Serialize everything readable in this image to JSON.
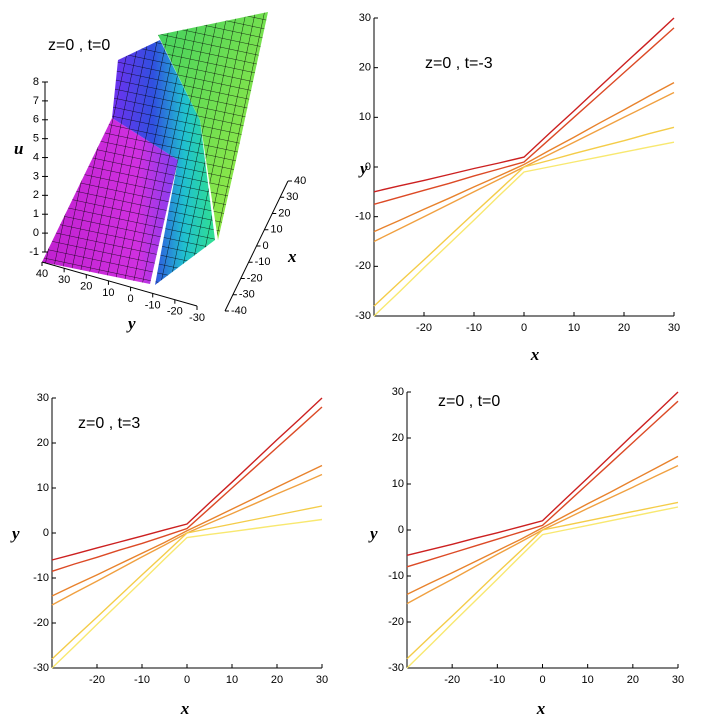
{
  "chart_data": [
    {
      "type": "surface",
      "title": "z=0 , t=0",
      "xlabel": "x",
      "ylabel": "y",
      "zlabel": "u",
      "xticks": [
        -40,
        -30,
        -20,
        -10,
        0,
        10,
        20,
        30,
        40
      ],
      "yticks": [
        -30,
        -20,
        -10,
        0,
        10,
        20,
        30,
        40
      ],
      "zticks": [
        -1,
        0,
        1,
        2,
        3,
        4,
        5,
        6,
        7,
        8
      ]
    },
    {
      "type": "line",
      "title": "z=0 , t=-3",
      "xlabel": "x",
      "ylabel": "y",
      "x": [
        -30,
        -25,
        -20,
        -15,
        -10,
        -5,
        0,
        5,
        10,
        15,
        20,
        25,
        30
      ],
      "xlim": [
        -30,
        30
      ],
      "ylim": [
        -30,
        30
      ],
      "xticks": [
        -20,
        -10,
        0,
        10,
        20,
        30
      ],
      "yticks": [
        -30,
        -20,
        -10,
        0,
        10,
        20,
        30
      ],
      "series": [
        {
          "color": "#cc2020",
          "values": [
            -5,
            -3.8,
            -2.7,
            -1.5,
            -0.3,
            0.8,
            2,
            6.7,
            11.3,
            16,
            20.7,
            25.3,
            30
          ]
        },
        {
          "color": "#dc4a26",
          "values": [
            -7.5,
            -6.1,
            -4.7,
            -3.3,
            -1.8,
            -0.4,
            1,
            5.5,
            10,
            14.5,
            19,
            23.5,
            28
          ]
        },
        {
          "color": "#e8822c",
          "values": [
            -13,
            -10.8,
            -8.5,
            -6.3,
            -4,
            -1.8,
            0.5,
            3.3,
            6,
            8.8,
            11.5,
            14.3,
            17
          ]
        },
        {
          "color": "#f0a040",
          "values": [
            -15,
            -12.5,
            -10,
            -7.5,
            -5,
            -2.5,
            0,
            2.5,
            5,
            7.5,
            10,
            12.5,
            15
          ]
        },
        {
          "color": "#f4cc48",
          "values": [
            -28,
            -23.3,
            -18.7,
            -14,
            -9.3,
            -4.7,
            0,
            1.3,
            2.7,
            4,
            5.3,
            6.7,
            8
          ]
        },
        {
          "color": "#f8e870",
          "values": [
            -30,
            -25.2,
            -20.3,
            -15.5,
            -10.7,
            -5.8,
            -1,
            0,
            1,
            2,
            3,
            4,
            5
          ]
        }
      ]
    },
    {
      "type": "line",
      "title": "z=0 , t=3",
      "xlabel": "x",
      "ylabel": "y",
      "x": [
        -30,
        -25,
        -20,
        -15,
        -10,
        -5,
        0,
        5,
        10,
        15,
        20,
        25,
        30
      ],
      "xlim": [
        -30,
        30
      ],
      "ylim": [
        -30,
        30
      ],
      "xticks": [
        -20,
        -10,
        0,
        10,
        20,
        30
      ],
      "yticks": [
        -30,
        -20,
        -10,
        0,
        10,
        20,
        30
      ],
      "series": [
        {
          "color": "#cc2020",
          "values": [
            -6,
            -4.7,
            -3.3,
            -2,
            -0.7,
            0.7,
            2,
            6.7,
            11.3,
            16,
            20.7,
            25.3,
            30
          ]
        },
        {
          "color": "#dc4a26",
          "values": [
            -8.5,
            -6.9,
            -5.4,
            -3.8,
            -2.3,
            -0.7,
            1,
            5.5,
            10,
            14.5,
            19,
            23.5,
            28
          ]
        },
        {
          "color": "#e8822c",
          "values": [
            -14,
            -11.6,
            -9.3,
            -6.9,
            -4.5,
            -2.1,
            0.5,
            2.9,
            5.3,
            7.7,
            10.2,
            12.6,
            15
          ]
        },
        {
          "color": "#f0a040",
          "values": [
            -16,
            -13.3,
            -10.7,
            -8,
            -5.3,
            -2.7,
            0,
            2.2,
            4.3,
            6.5,
            8.7,
            10.8,
            13
          ]
        },
        {
          "color": "#f4cc48",
          "values": [
            -28,
            -23.3,
            -18.7,
            -14,
            -9.3,
            -4.7,
            0,
            1,
            2,
            3,
            4,
            5,
            6
          ]
        },
        {
          "color": "#f8e870",
          "values": [
            -30,
            -25.2,
            -20.3,
            -15.5,
            -10.7,
            -5.8,
            -1,
            -0.3,
            0.3,
            1,
            1.7,
            2.3,
            3
          ]
        }
      ]
    },
    {
      "type": "line",
      "title": "z=0 , t=0",
      "xlabel": "x",
      "ylabel": "y",
      "x": [
        -30,
        -25,
        -20,
        -15,
        -10,
        -5,
        0,
        5,
        10,
        15,
        20,
        25,
        30
      ],
      "xlim": [
        -30,
        30
      ],
      "ylim": [
        -30,
        30
      ],
      "xticks": [
        -20,
        -10,
        0,
        10,
        20,
        30
      ],
      "yticks": [
        -30,
        -20,
        -10,
        0,
        10,
        20,
        30
      ],
      "series": [
        {
          "color": "#cc2020",
          "values": [
            -5.5,
            -4.3,
            -3.1,
            -1.8,
            -0.6,
            0.7,
            2,
            6.7,
            11.3,
            16,
            20.7,
            25.3,
            30
          ]
        },
        {
          "color": "#dc4a26",
          "values": [
            -8,
            -6.5,
            -5,
            -3.5,
            -2,
            -0.5,
            1,
            5.5,
            10,
            14.5,
            19,
            23.5,
            28
          ]
        },
        {
          "color": "#e8822c",
          "values": [
            -14,
            -11.6,
            -9.3,
            -6.9,
            -4.5,
            -2.1,
            0.5,
            3.1,
            5.7,
            8.2,
            10.8,
            13.4,
            16
          ]
        },
        {
          "color": "#f0a040",
          "values": [
            -16,
            -13.3,
            -10.7,
            -8,
            -5.3,
            -2.7,
            0,
            2.3,
            4.7,
            7,
            9.3,
            11.7,
            14
          ]
        },
        {
          "color": "#f4cc48",
          "values": [
            -28,
            -23.3,
            -18.7,
            -14,
            -9.3,
            -4.7,
            0,
            1,
            2,
            3,
            4,
            5,
            6
          ]
        },
        {
          "color": "#f8e870",
          "values": [
            -30,
            -25.2,
            -20.3,
            -15.5,
            -10.7,
            -5.8,
            -1,
            0,
            1,
            2,
            3,
            4,
            5
          ]
        }
      ]
    }
  ]
}
